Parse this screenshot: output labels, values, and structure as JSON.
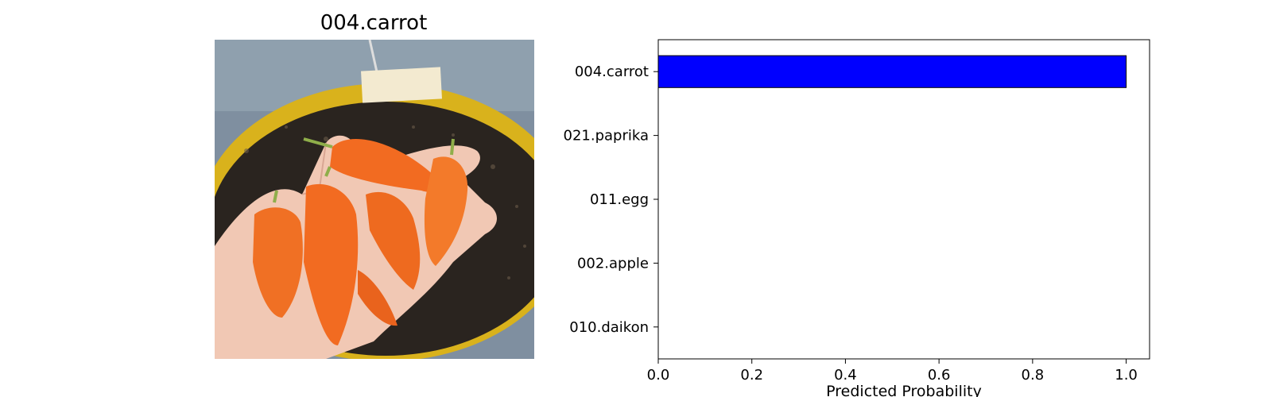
{
  "image_panel": {
    "title": "004.carrot",
    "photo_subject": "hand-holding-carrots-over-soil-pot"
  },
  "colors": {
    "bar": "#0000ff",
    "bar_edge": "#000000",
    "carrot": "#f26b21",
    "pot_rim": "#d9b21c",
    "soil": "#2a241f",
    "skin": "#f1c8b4"
  },
  "chart_data": {
    "type": "bar",
    "orientation": "horizontal",
    "categories": [
      "004.carrot",
      "021.paprika",
      "011.egg",
      "002.apple",
      "010.daikon"
    ],
    "values": [
      1.0,
      0.0,
      0.0,
      0.0,
      0.0
    ],
    "xlabel": "Predicted Probability",
    "ylabel": "",
    "xlim": [
      0.0,
      1.05
    ],
    "xticks": [
      "0.0",
      "0.2",
      "0.4",
      "0.6",
      "0.8",
      "1.0"
    ],
    "grid": false
  }
}
